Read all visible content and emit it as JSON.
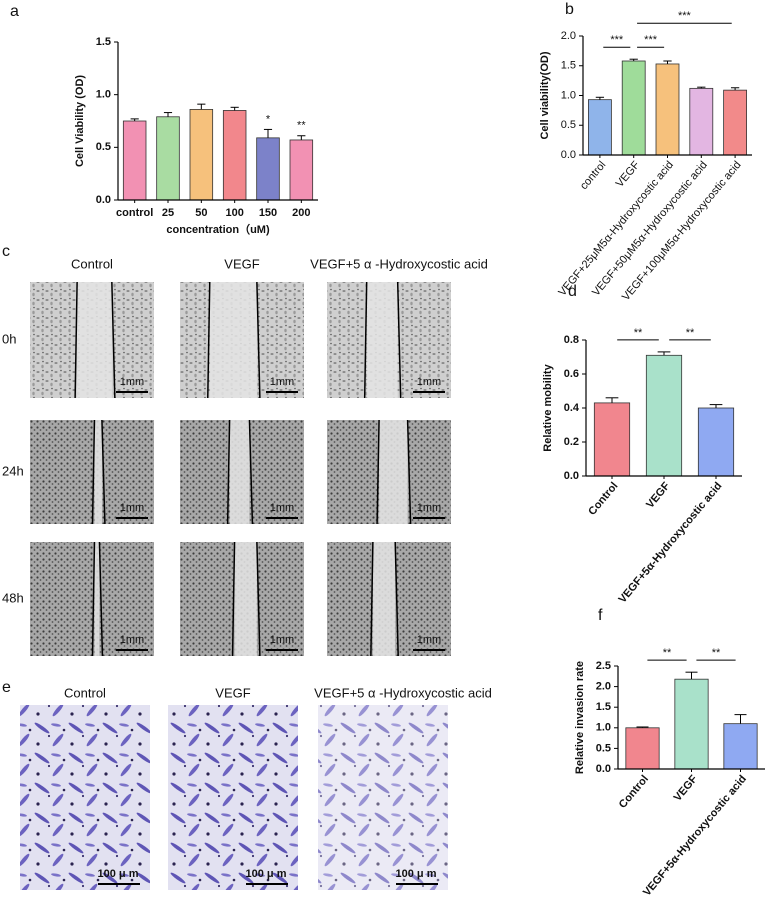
{
  "chart_data": [
    {
      "type": "bar",
      "panel": "a",
      "ylabel": "Cell Viability (OD)",
      "xlabel": "concentration（uM)",
      "categories": [
        "control",
        "25",
        "50",
        "100",
        "150",
        "200"
      ],
      "values": [
        0.75,
        0.79,
        0.86,
        0.85,
        0.59,
        0.57
      ],
      "errors": [
        0.02,
        0.04,
        0.05,
        0.03,
        0.08,
        0.04
      ],
      "colors": [
        "#f291b3",
        "#a9dca2",
        "#f6c17c",
        "#f2878c",
        "#7c82c9",
        "#f291b3"
      ],
      "ylim": [
        0,
        1.5
      ],
      "yticks": [
        {
          "value": 0,
          "label": "0.0"
        },
        {
          "value": 0.5,
          "label": "0.5"
        },
        {
          "value": 1,
          "label": "1.0"
        },
        {
          "value": 1.5,
          "label": "1.5"
        }
      ],
      "annotations": [
        {
          "label": "*",
          "index": 4
        },
        {
          "label": "**",
          "index": 5
        }
      ]
    },
    {
      "type": "bar",
      "panel": "b",
      "ylabel": "Cell viability(OD)",
      "categories": [
        "control",
        "VEGF",
        "VEGF+25μM5α-Hydroxycostic acid",
        "VEGF+50μM5α-Hydroxycostic acid",
        "VEGF+100μM5α-Hydroxycostic acid"
      ],
      "values": [
        0.93,
        1.58,
        1.53,
        1.12,
        1.09
      ],
      "errors": [
        0.04,
        0.03,
        0.05,
        0.02,
        0.04
      ],
      "colors": [
        "#8fb4ea",
        "#9fdc9a",
        "#f6c17c",
        "#e3b6e2",
        "#f28a8a"
      ],
      "ylim": [
        0,
        2
      ],
      "yticks": [
        {
          "value": 0,
          "label": "0.0"
        },
        {
          "value": 0.5,
          "label": "0.5"
        },
        {
          "value": 1,
          "label": "1.0"
        },
        {
          "value": 1.5,
          "label": "1.5"
        },
        {
          "value": 2,
          "label": "2.0"
        }
      ],
      "brackets": [
        {
          "label": "***",
          "from": 0,
          "to": 1
        },
        {
          "label": "***",
          "from": 1,
          "to": 2
        },
        {
          "label": "***",
          "from": 1,
          "to": 4
        }
      ]
    },
    {
      "type": "bar",
      "panel": "d",
      "ylabel": "Relative mobility",
      "categories": [
        "Control",
        "VEGF",
        "VEGF+5α-Hydroxycostic acid"
      ],
      "values": [
        0.43,
        0.71,
        0.4
      ],
      "errors": [
        0.03,
        0.02,
        0.02
      ],
      "colors": [
        "#f1868e",
        "#a9e1ca",
        "#8fa9f2"
      ],
      "ylim": [
        0,
        0.8
      ],
      "yticks": [
        {
          "value": 0,
          "label": "0.0"
        },
        0.2,
        0.4,
        0.6,
        0.8
      ],
      "brackets": [
        {
          "label": "**",
          "from": 0,
          "to": 1
        },
        {
          "label": "**",
          "from": 1,
          "to": 2
        }
      ]
    },
    {
      "type": "bar",
      "panel": "f",
      "ylabel": "Relative invasion rate",
      "categories": [
        "Control",
        "VEGF",
        "VEGF+5α-Hydroxycostic acid"
      ],
      "values": [
        1.0,
        2.18,
        1.1
      ],
      "errors": [
        0.02,
        0.17,
        0.22
      ],
      "colors": [
        "#f1868e",
        "#a9e1ca",
        "#8fa9f2"
      ],
      "ylim": [
        0,
        2.5
      ],
      "yticks": [
        {
          "value": 0,
          "label": "0.0"
        },
        0.5,
        {
          "value": 1,
          "label": "1.0"
        },
        1.5,
        {
          "value": 2,
          "label": "2.0"
        },
        2.5
      ],
      "brackets": [
        {
          "label": "**",
          "from": 0,
          "to": 1
        },
        {
          "label": "**",
          "from": 1,
          "to": 2
        }
      ]
    }
  ],
  "wound_healing": {
    "panel": "c",
    "columns": [
      "Control",
      "VEGF",
      "VEGF+5 α -Hydroxycostic acid"
    ],
    "rows": [
      "0h",
      "24h",
      "48h"
    ],
    "scale": "1mm"
  },
  "invasion": {
    "panel": "e",
    "columns": [
      "Control",
      "VEGF",
      "VEGF+5 α -Hydroxycostic acid"
    ],
    "scale": "100 μ m"
  }
}
